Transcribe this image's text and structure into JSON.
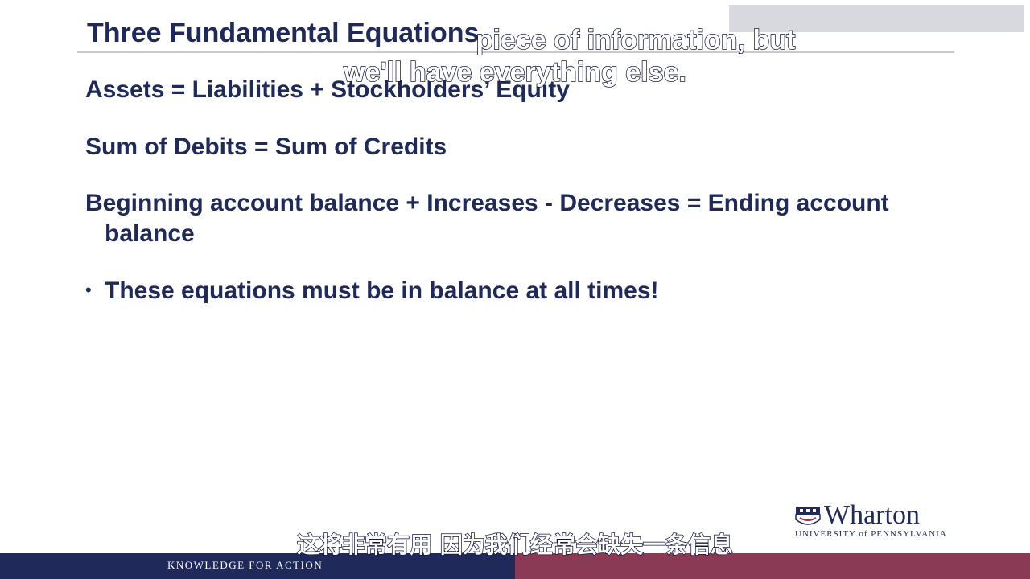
{
  "slide": {
    "title": "Three Fundamental Equations",
    "equation_1": "Assets = Liabilities + Stockholders’ Equity",
    "equation_2": "Sum of Debits = Sum of Credits",
    "equation_3_line1": "Beginning account balance + Increases - Decreases = Ending account",
    "equation_3_line2": "balance",
    "bullet_marker": "•",
    "bullet_text": "These equations must be in balance at all times!"
  },
  "subtitles": {
    "english_line1": "piece of information, but",
    "english_line2": "we'll have everything else.",
    "chinese": "这将非常有用 因为我们经常会缺失一条信息"
  },
  "logo": {
    "word": "Wharton",
    "sub": "UNIVERSITY of PENNSYLVANIA"
  },
  "footer": {
    "tagline": "KNOWLEDGE FOR ACTION"
  },
  "colors": {
    "text_navy": "#1f2a5a",
    "footer_navy": "#1f2a5a",
    "footer_maroon": "#8b3a55",
    "rule_gray": "#c9c9c9"
  }
}
